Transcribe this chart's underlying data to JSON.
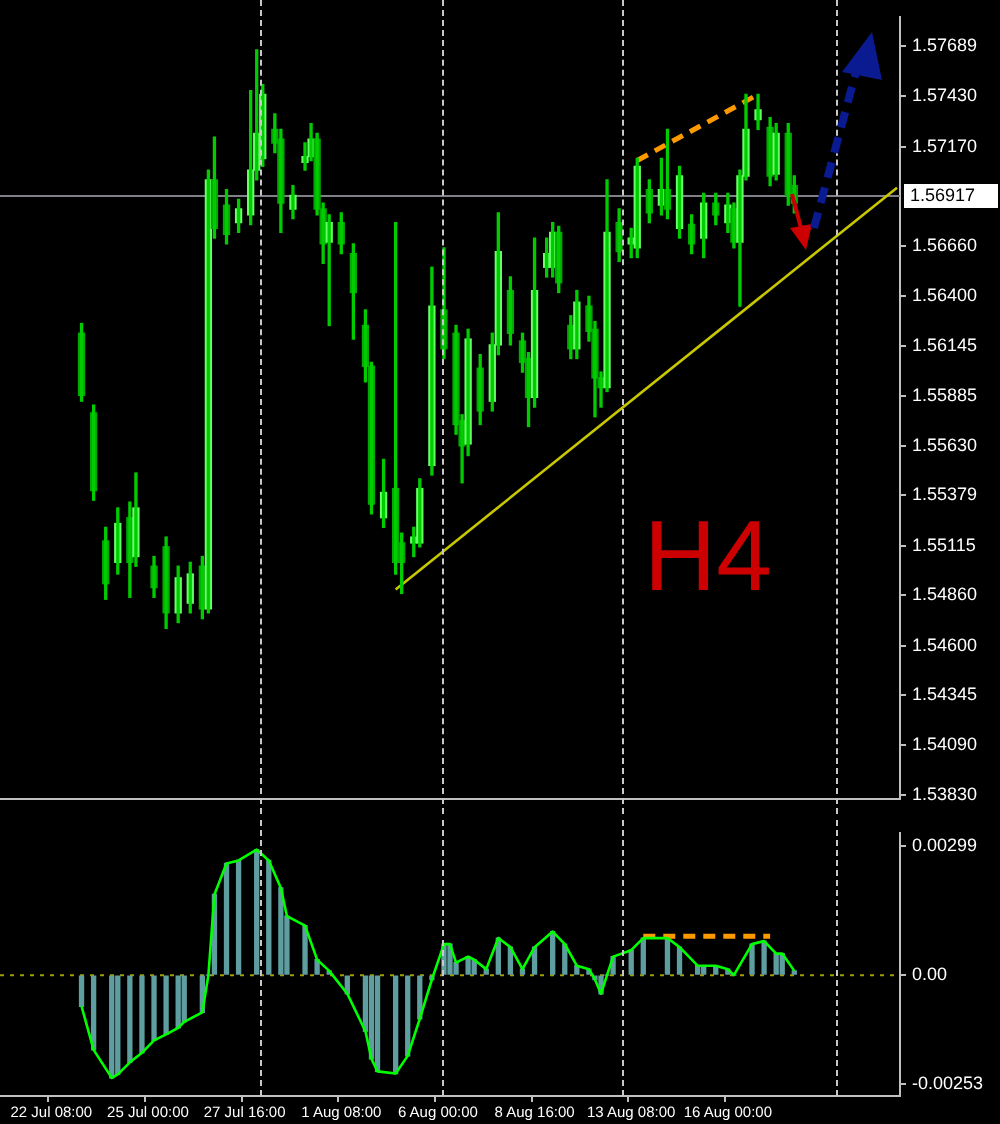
{
  "chart_data": [
    {
      "type": "candlestick",
      "color": "#00cc00",
      "colors": [
        null,
        null,
        null,
        null,
        null,
        null,
        null,
        null,
        null,
        null,
        null,
        null,
        null,
        "#00aa00",
        null,
        "#00aa00",
        null,
        "#00aa00",
        null,
        "#66ff66",
        null,
        "#00aa00",
        "#66ff66",
        null,
        null,
        "#00aa00",
        null,
        "#00aa00",
        null,
        "#66ff66",
        null,
        "#66ff66",
        null,
        "#00aa00",
        "#66ff66",
        "#00aa00",
        null,
        "#00aa00",
        null,
        "#66ff66",
        null,
        "#66ff66",
        "#66ff66",
        "#66ff66",
        null,
        "#00aa00",
        "#00aa00",
        null,
        "#66ff66",
        null,
        "#66ff66",
        "#66ff66",
        "#00aa00",
        "#00aa00",
        "#66ff66",
        null,
        "#00aa00",
        null,
        "#00aa00",
        null,
        "#00aa00",
        "#00aa00",
        null,
        "#66ff66",
        null,
        "#00aa00",
        "#00aa00",
        null,
        "#66ff66",
        "#66ff66",
        null,
        "#66ff66",
        null,
        "#00aa00",
        null,
        "#00aa00",
        "#00aa00",
        "#66ff66",
        null,
        "#00aa00",
        null,
        "#66ff66",
        "#66ff66",
        null,
        "#00aa00",
        null,
        "#00aa00",
        "#00aa00",
        "#66ff66",
        null,
        "#66ff66",
        "#66ff66",
        "#00aa00",
        null,
        "#00aa00",
        "#66ff66",
        null,
        "#00aa00",
        "#00aa00",
        "#00aa00",
        "#66ff66",
        null,
        "#00aa00",
        null,
        "#66ff66",
        "#66ff66",
        null,
        "#00aa00",
        null,
        "#66ff66",
        "#00aa00",
        null,
        "#66ff66",
        null,
        "#00aa00",
        null,
        "#66ff66",
        null,
        "#00aa00",
        null,
        "#66ff66",
        "#00aa00",
        "#66ff66",
        "#66ff66",
        null,
        "#66ff66",
        null,
        "#00aa00",
        "#66ff66",
        null,
        "#00aa00",
        "#00aa00",
        null,
        null,
        null,
        null,
        null,
        null,
        null,
        null,
        null,
        null,
        null,
        null,
        null,
        null,
        null,
        null,
        null
      ],
      "ylim": [
        1.5381,
        1.5784
      ],
      "tick_labels": "y",
      "annotations": [
        "H4"
      ],
      "yticks": [
        {
          "value": 1.57689,
          "label": "1.57689"
        },
        {
          "value": 1.5743,
          "label": "1.57430"
        },
        {
          "value": 1.5717,
          "label": "1.57170"
        },
        {
          "value": 1.5666,
          "label": "1.56660"
        },
        {
          "value": 1.564,
          "label": "1.56400"
        },
        {
          "value": 1.56145,
          "label": "1.56145"
        },
        {
          "value": 1.55885,
          "label": "1.55885"
        },
        {
          "value": 1.5563,
          "label": "1.55630"
        },
        {
          "value": 1.55379,
          "label": "1.55379"
        },
        {
          "value": 1.55115,
          "label": "1.55115"
        },
        {
          "value": 1.5486,
          "label": "1.54860"
        },
        {
          "value": 1.546,
          "label": "1.54600"
        },
        {
          "value": 1.54345,
          "label": "1.54345"
        },
        {
          "value": 1.5409,
          "label": "1.54090"
        },
        {
          "value": 1.5383,
          "label": "1.53830"
        }
      ],
      "categories": [
        null,
        null,
        null,
        null,
        null,
        null,
        null,
        null,
        null,
        null,
        null,
        null,
        null,
        null,
        null,
        null,
        null,
        null,
        null,
        null,
        null,
        null,
        null,
        null,
        null,
        null,
        null,
        null,
        null,
        null,
        null,
        null,
        null,
        null,
        null,
        null,
        null,
        null,
        null,
        null,
        null,
        null,
        null,
        null,
        null,
        null,
        null,
        null,
        null,
        null,
        null,
        null,
        null,
        null,
        null,
        null,
        null,
        null,
        null,
        null,
        null,
        null,
        null,
        null,
        null,
        null,
        null,
        null,
        null,
        null,
        null,
        null,
        null,
        null,
        null,
        null,
        null,
        null,
        null,
        null,
        null,
        null,
        null,
        null,
        null,
        null,
        null,
        null,
        null,
        null,
        null,
        null,
        null,
        null,
        null,
        null,
        null,
        null,
        null,
        null,
        null,
        null,
        null,
        null,
        null,
        null,
        null,
        null,
        null,
        null,
        null,
        null,
        null,
        null,
        null,
        null,
        null,
        null,
        null,
        null,
        null,
        null,
        null,
        null,
        null,
        null,
        null,
        null,
        null,
        null,
        null,
        null,
        null,
        null,
        null,
        null,
        null,
        null,
        null,
        null,
        null,
        null,
        null,
        null,
        null,
        null,
        null,
        null,
        null
      ],
      "ohlc": [
        null,
        null,
        null,
        null,
        null,
        null,
        null,
        null,
        null,
        null,
        null,
        null,
        null,
        [
          1.5621,
          1.5626,
          1.5586,
          1.5589
        ],
        null,
        [
          1.558,
          1.5584,
          1.5535,
          1.554
        ],
        null,
        [
          1.5514,
          1.5521,
          1.5484,
          1.5492
        ],
        null,
        [
          1.5503,
          1.5531,
          1.5497,
          1.5523
        ],
        null,
        [
          1.5526,
          1.5534,
          1.5485,
          1.5503
        ],
        [
          1.5506,
          1.5549,
          1.5501,
          1.5531
        ],
        null,
        null,
        [
          1.5501,
          1.5506,
          1.5485,
          1.549
        ],
        null,
        [
          1.5511,
          1.5516,
          1.5469,
          1.5477
        ],
        null,
        [
          1.5477,
          1.5501,
          1.5472,
          1.5495
        ],
        null,
        [
          1.5482,
          1.5503,
          1.5477,
          1.5497
        ],
        null,
        [
          1.5501,
          1.5506,
          1.5474,
          1.5479
        ],
        [
          1.5479,
          1.5705,
          1.5477,
          1.57
        ],
        [
          1.57,
          1.5722,
          1.567,
          1.5675
        ],
        null,
        [
          1.5687,
          1.5695,
          1.5667,
          1.5672
        ],
        null,
        [
          1.5678,
          1.569,
          1.5673,
          1.5685
        ],
        null,
        [
          1.5682,
          1.5746,
          1.5677,
          1.5705
        ],
        [
          1.5705,
          1.5767,
          1.57,
          1.5724
        ],
        [
          1.5711,
          1.5749,
          1.5707,
          1.5744
        ],
        null,
        [
          1.5726,
          1.5734,
          1.5714,
          1.5719
        ],
        [
          1.5721,
          1.5726,
          1.5673,
          1.5688
        ],
        null,
        [
          1.5685,
          1.5697,
          1.568,
          1.5692
        ],
        null,
        [
          1.5709,
          1.5719,
          1.5705,
          1.5712
        ],
        [
          1.5712,
          1.5729,
          1.571,
          1.5721
        ],
        [
          1.5721,
          1.5724,
          1.5682,
          1.5685
        ],
        [
          1.5685,
          1.5688,
          1.5657,
          1.5667
        ],
        [
          1.5668,
          1.5682,
          1.5625,
          1.5678
        ],
        null,
        [
          1.5678,
          1.5683,
          1.5662,
          1.5667
        ],
        null,
        [
          1.5662,
          1.5667,
          1.5618,
          1.5642
        ],
        null,
        [
          1.5625,
          1.5633,
          1.5596,
          1.5604
        ],
        [
          1.5604,
          1.5606,
          1.5528,
          1.5533
        ],
        null,
        [
          1.5526,
          1.5556,
          1.5521,
          1.5539
        ],
        null,
        [
          1.5541,
          1.5678,
          1.5497,
          1.5503
        ],
        [
          1.5513,
          1.5518,
          1.5487,
          1.5503
        ],
        null,
        [
          1.5513,
          1.5521,
          1.5506,
          1.5516
        ],
        [
          1.5513,
          1.5546,
          1.5511,
          1.5541
        ],
        null,
        [
          1.5553,
          1.5655,
          1.5548,
          1.5635
        ],
        null,
        [
          1.5633,
          1.5665,
          1.5608,
          1.5613
        ],
        null,
        [
          1.5621,
          1.5625,
          1.5569,
          1.5574
        ],
        [
          1.5576,
          1.5579,
          1.5544,
          1.5563
        ],
        [
          1.5564,
          1.5623,
          1.5558,
          1.5618
        ],
        null,
        [
          1.5603,
          1.561,
          1.5574,
          1.5581
        ],
        null,
        [
          1.5586,
          1.5621,
          1.5581,
          1.5615
        ],
        [
          1.5615,
          1.5683,
          1.561,
          1.5663
        ],
        null,
        [
          1.5643,
          1.565,
          1.5615,
          1.5621
        ],
        null,
        [
          1.5617,
          1.5621,
          1.5601,
          1.5606
        ],
        [
          1.5608,
          1.5611,
          1.5573,
          1.5588
        ],
        [
          1.5588,
          1.567,
          1.5583,
          1.5643
        ],
        null,
        [
          1.5655,
          1.567,
          1.565,
          1.5662
        ],
        [
          1.5655,
          1.5678,
          1.565,
          1.5673
        ],
        [
          1.5673,
          1.5676,
          1.5642,
          1.5647
        ],
        null,
        [
          1.5625,
          1.563,
          1.5608,
          1.5613
        ],
        [
          1.5613,
          1.5643,
          1.5608,
          1.5637
        ],
        null,
        [
          1.5635,
          1.564,
          1.5617,
          1.5622
        ],
        [
          1.5623,
          1.5627,
          1.5578,
          1.5598
        ],
        [
          1.5598,
          1.5601,
          1.5583,
          1.5593
        ],
        [
          1.5593,
          1.57,
          1.5591,
          1.5673
        ],
        null,
        [
          1.5678,
          1.5685,
          1.5658,
          1.5663
        ],
        null,
        [
          1.5667,
          1.5675,
          1.566,
          1.567
        ],
        [
          1.5665,
          1.5711,
          1.566,
          1.5707
        ],
        null,
        [
          1.5695,
          1.57,
          1.5678,
          1.5683
        ],
        null,
        [
          1.5687,
          1.5711,
          1.5682,
          1.5695
        ],
        [
          1.5695,
          1.5726,
          1.568,
          1.5685
        ],
        null,
        [
          1.5675,
          1.5707,
          1.567,
          1.5702
        ],
        null,
        [
          1.5677,
          1.5682,
          1.5662,
          1.5667
        ],
        null,
        [
          1.567,
          1.5693,
          1.566,
          1.5688
        ],
        null,
        [
          1.5688,
          1.5693,
          1.5677,
          1.5682
        ],
        null,
        [
          1.5678,
          1.5693,
          1.5673,
          1.5687
        ],
        [
          1.5685,
          1.5688,
          1.5665,
          1.5668
        ],
        [
          1.5668,
          1.5705,
          1.5635,
          1.5702
        ],
        [
          1.5702,
          1.5744,
          1.57,
          1.5726
        ],
        null,
        [
          1.5731,
          1.5744,
          1.5726,
          1.5736
        ],
        null,
        [
          1.5727,
          1.5732,
          1.5697,
          1.5702
        ],
        [
          1.5703,
          1.5729,
          1.57,
          1.5724
        ],
        null,
        [
          1.5724,
          1.5729,
          1.5687,
          1.5692
        ],
        [
          1.5697,
          1.5702,
          1.5683,
          1.5688
        ],
        null,
        null,
        null,
        null,
        null,
        null,
        null,
        null,
        null,
        null,
        null,
        null,
        null,
        null,
        null,
        null,
        null
      ],
      "series": [
        {
          "type": "line",
          "color": "#c8c800",
          "values": [
            null,
            null,
            null,
            null,
            null,
            null,
            null,
            null,
            null,
            null,
            null,
            null,
            null,
            null,
            null,
            null,
            null,
            null,
            null,
            null,
            null,
            null,
            null,
            null,
            null,
            null,
            null,
            null,
            null,
            null,
            null,
            null,
            null,
            null,
            null,
            null,
            null,
            null,
            null,
            null,
            null,
            null,
            null,
            null,
            null,
            null,
            null,
            null,
            null,
            null,
            null,
            null,
            null,
            null,
            null,
            null,
            null,
            null,
            null,
            null,
            null,
            null,
            null,
            null,
            null,
            1.5489,
            null,
            null,
            null,
            null,
            null,
            null,
            null,
            null,
            null,
            null,
            null,
            null,
            null,
            null,
            null,
            null,
            null,
            null,
            null,
            null,
            null,
            null,
            null,
            null,
            null,
            null,
            null,
            null,
            null,
            null,
            null,
            null,
            null,
            null,
            null,
            null,
            null,
            null,
            null,
            null,
            null,
            null,
            null,
            null,
            null,
            null,
            null,
            null,
            null,
            null,
            null,
            null,
            null,
            null,
            null,
            null,
            null,
            null,
            null,
            null,
            null,
            null,
            null,
            null,
            null,
            null,
            null,
            null,
            null,
            null,
            null,
            null,
            null,
            null,
            null,
            null,
            null,
            null,
            null,
            null,
            null,
            null,
            1.5696
          ]
        },
        {
          "type": "line",
          "color": "#ff9900",
          "line_style": "dashed",
          "values": [
            null,
            null,
            null,
            null,
            null,
            null,
            null,
            null,
            null,
            null,
            null,
            null,
            null,
            null,
            null,
            null,
            null,
            null,
            null,
            null,
            null,
            null,
            null,
            null,
            null,
            null,
            null,
            null,
            null,
            null,
            null,
            null,
            null,
            null,
            null,
            null,
            null,
            null,
            null,
            null,
            null,
            null,
            null,
            null,
            null,
            null,
            null,
            null,
            null,
            null,
            null,
            null,
            null,
            null,
            null,
            null,
            null,
            null,
            null,
            null,
            null,
            null,
            null,
            null,
            null,
            null,
            null,
            null,
            null,
            null,
            null,
            null,
            null,
            null,
            null,
            null,
            null,
            null,
            null,
            null,
            null,
            null,
            null,
            null,
            null,
            null,
            null,
            null,
            null,
            null,
            null,
            null,
            null,
            null,
            null,
            null,
            null,
            null,
            null,
            null,
            null,
            null,
            null,
            null,
            null,
            1.571,
            null,
            null,
            null,
            null,
            null,
            null,
            null,
            null,
            null,
            null,
            null,
            null,
            null,
            null,
            null,
            null,
            null,
            null,
            null,
            1.5744,
            null,
            null,
            null,
            null,
            null,
            null,
            null,
            null,
            null,
            null,
            null,
            null,
            null,
            null,
            null,
            null,
            null,
            null,
            null,
            null,
            null,
            null,
            null
          ]
        }
      ],
      "ref_lines": [
        {
          "axis": "y",
          "value": 1.56917,
          "label": "1.56917",
          "color": "#7f8088",
          "line_style": "solid"
        }
      ]
    },
    {
      "type": "bar",
      "ylim": [
        -0.0028,
        0.0033
      ],
      "categories": [
        null,
        null,
        null,
        null,
        null,
        null,
        null,
        null,
        "22 Jul 08:00",
        null,
        null,
        null,
        null,
        null,
        null,
        null,
        null,
        null,
        null,
        null,
        null,
        null,
        null,
        null,
        "25 Jul 00:00",
        null,
        null,
        null,
        null,
        null,
        null,
        null,
        null,
        null,
        null,
        null,
        null,
        null,
        null,
        null,
        "27 Jul 16:00",
        null,
        null,
        null,
        null,
        null,
        null,
        null,
        null,
        null,
        null,
        null,
        null,
        null,
        null,
        null,
        "1 Aug 08:00",
        null,
        null,
        null,
        null,
        null,
        null,
        null,
        null,
        null,
        null,
        null,
        null,
        null,
        null,
        null,
        "6 Aug 00:00",
        null,
        null,
        null,
        null,
        null,
        null,
        null,
        null,
        null,
        null,
        null,
        null,
        null,
        null,
        null,
        "8 Aug 16:00",
        null,
        null,
        null,
        null,
        null,
        null,
        null,
        null,
        null,
        null,
        null,
        null,
        null,
        null,
        null,
        "13 Aug 08:00",
        null,
        null,
        null,
        null,
        null,
        null,
        null,
        null,
        null,
        null,
        null,
        null,
        null,
        null,
        null,
        "16 Aug 00:00",
        null,
        null,
        null,
        null,
        null,
        null,
        null,
        null,
        null,
        null,
        null,
        null,
        null,
        null,
        null,
        null,
        null,
        null,
        null,
        null,
        null,
        null,
        null,
        null,
        null,
        null,
        null,
        null
      ],
      "yticks": [
        {
          "value": 0.00299,
          "label": "0.00299"
        },
        {
          "value": 0,
          "label": "0.00"
        },
        {
          "value": -0.00253,
          "label": "-0.00253"
        }
      ],
      "series": [
        {
          "type": "bar",
          "color": "#5f9ea0",
          "values": [
            null,
            null,
            null,
            null,
            null,
            null,
            null,
            null,
            null,
            null,
            null,
            null,
            null,
            -0.00072,
            null,
            -0.00173,
            null,
            null,
            -0.00238,
            -0.0023,
            null,
            -0.00202,
            null,
            -0.0018,
            null,
            -0.00151,
            null,
            -0.00137,
            null,
            -0.00122,
            -0.00108,
            null,
            null,
            -0.00086,
            0,
            0.00187,
            null,
            0.00259,
            null,
            0.00266,
            null,
            null,
            0.00291,
            null,
            0.00266,
            null,
            0.00202,
            0.00137,
            null,
            null,
            0.00115,
            null,
            0.00036,
            null,
            0.0001,
            null,
            null,
            -0.00043,
            null,
            null,
            -0.0013,
            -0.00194,
            -0.00223,
            null,
            null,
            -0.00228,
            null,
            -0.00187,
            null,
            -0.00101,
            null,
            -0.0001,
            null,
            0.00072,
            0.00072,
            0.00029,
            null,
            0.00043,
            0.00036,
            null,
            0.00014,
            null,
            0.00086,
            null,
            0.00065,
            null,
            0.00014,
            null,
            0.00065,
            null,
            null,
            0.00101,
            null,
            0.00072,
            null,
            0.00022,
            null,
            0.00014,
            -0.0001,
            -0.00043,
            0,
            0.00043,
            null,
            null,
            0.00058,
            null,
            0.00086,
            null,
            null,
            null,
            0.00086,
            null,
            0.00065,
            null,
            null,
            0.00022,
            0.00022,
            null,
            0.00022,
            null,
            0.00014,
            0,
            null,
            null,
            0.00072,
            null,
            0.00079,
            null,
            0.0005,
            0.0005,
            null,
            0.0001,
            null,
            null,
            null,
            null,
            null,
            null,
            null,
            null,
            null,
            null,
            null,
            null,
            null,
            null,
            null,
            null,
            null
          ]
        },
        {
          "type": "line",
          "color": "#00ff00",
          "values": [
            null,
            null,
            null,
            null,
            null,
            null,
            null,
            null,
            null,
            null,
            null,
            null,
            null,
            -0.00072,
            null,
            -0.00173,
            null,
            null,
            -0.00238,
            -0.0023,
            null,
            -0.00202,
            null,
            -0.0018,
            null,
            -0.00151,
            null,
            -0.00137,
            null,
            -0.00122,
            -0.00108,
            null,
            null,
            -0.00086,
            0,
            0.00187,
            null,
            0.00259,
            null,
            0.00266,
            null,
            null,
            0.00291,
            null,
            0.00266,
            null,
            0.00202,
            0.00137,
            null,
            null,
            0.00115,
            null,
            0.00036,
            null,
            0.0001,
            null,
            null,
            -0.00043,
            null,
            null,
            -0.0013,
            -0.00194,
            -0.00223,
            null,
            null,
            -0.00228,
            null,
            -0.00187,
            null,
            -0.00101,
            null,
            -0.0001,
            null,
            0.00072,
            0.00072,
            0.00029,
            null,
            0.00043,
            0.00036,
            null,
            0.00014,
            null,
            0.00086,
            null,
            0.00065,
            null,
            0.00014,
            null,
            0.00065,
            null,
            null,
            0.00101,
            null,
            0.00072,
            null,
            0.00022,
            null,
            0.00014,
            -0.0001,
            -0.00043,
            0,
            0.00043,
            null,
            null,
            0.00058,
            null,
            0.00086,
            null,
            null,
            null,
            0.00086,
            null,
            0.00065,
            null,
            null,
            0.00022,
            0.00022,
            null,
            0.00022,
            null,
            0.00014,
            0,
            null,
            null,
            0.00072,
            null,
            0.00079,
            null,
            0.0005,
            0.0005,
            null,
            0.0001,
            null,
            null,
            null,
            null,
            null,
            null,
            null,
            null,
            null,
            null,
            null,
            null,
            null,
            null,
            null,
            null,
            null
          ]
        },
        {
          "type": "line",
          "color": "#ff9900",
          "line_style": "dashed",
          "values": [
            null,
            null,
            null,
            null,
            null,
            null,
            null,
            null,
            null,
            null,
            null,
            null,
            null,
            null,
            null,
            null,
            null,
            null,
            null,
            null,
            null,
            null,
            null,
            null,
            null,
            null,
            null,
            null,
            null,
            null,
            null,
            null,
            null,
            null,
            null,
            null,
            null,
            null,
            null,
            null,
            null,
            null,
            null,
            null,
            null,
            null,
            null,
            null,
            null,
            null,
            null,
            null,
            null,
            null,
            null,
            null,
            null,
            null,
            null,
            null,
            null,
            null,
            null,
            null,
            null,
            null,
            null,
            null,
            null,
            null,
            null,
            null,
            null,
            null,
            null,
            null,
            null,
            null,
            null,
            null,
            null,
            null,
            null,
            null,
            null,
            null,
            null,
            null,
            null,
            null,
            null,
            null,
            null,
            null,
            null,
            null,
            null,
            null,
            null,
            null,
            null,
            null,
            null,
            null,
            null,
            null,
            0.0009,
            null,
            null,
            null,
            null,
            null,
            null,
            null,
            null,
            null,
            null,
            null,
            null,
            null,
            null,
            null,
            null,
            null,
            null,
            null,
            null,
            0.0009,
            null,
            null,
            null,
            null,
            null,
            null,
            null,
            null,
            null,
            null,
            null,
            null,
            null,
            null,
            null,
            null,
            null,
            null,
            null,
            null,
            null
          ]
        }
      ],
      "ref_lines": [
        {
          "axis": "y",
          "value": 0,
          "color": "#a0a000",
          "line_style": "dotted"
        }
      ]
    }
  ]
}
